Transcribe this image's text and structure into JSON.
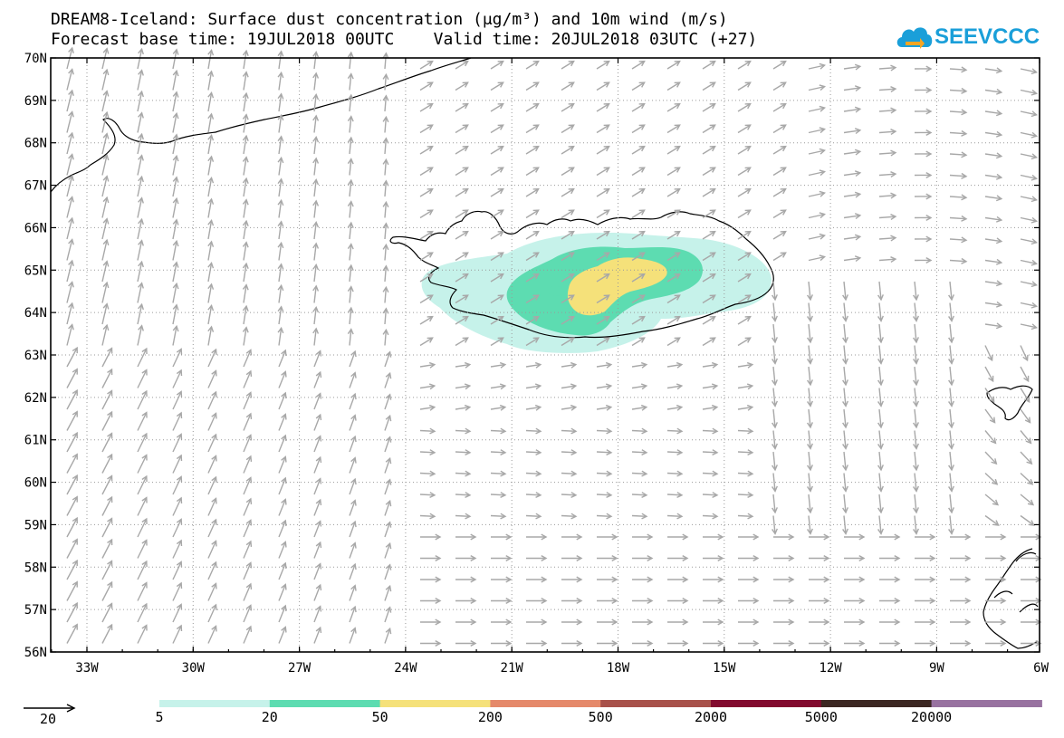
{
  "header": {
    "title_line1": "DREAM8-Iceland: Surface dust concentration (μg/m³) and 10m wind (m/s)",
    "title_line2": "Forecast base time: 19JUL2018 00UTC    Valid time: 20JUL2018 03UTC (+27)"
  },
  "logo": {
    "text": "SEEVCCC",
    "color": "#1a9fd9",
    "icon": "cloud-logo-icon"
  },
  "map": {
    "lat_labels": [
      "70N",
      "69N",
      "68N",
      "67N",
      "66N",
      "65N",
      "64N",
      "63N",
      "62N",
      "61N",
      "60N",
      "59N",
      "58N",
      "57N",
      "56N"
    ],
    "lon_labels": [
      "33W",
      "30W",
      "27W",
      "24W",
      "21W",
      "18W",
      "15W",
      "12W",
      "9W",
      "6W"
    ],
    "grid": "dotted"
  },
  "legend": {
    "wind_reference": "20",
    "bins": [
      {
        "label": "5",
        "color": "#c6f2ea"
      },
      {
        "label": "20",
        "color": "#5ddcb1"
      },
      {
        "label": "50",
        "color": "#f5e17a"
      },
      {
        "label": "200",
        "color": "#e5896a"
      },
      {
        "label": "500",
        "color": "#a8514a"
      },
      {
        "label": "2000",
        "color": "#820a2e"
      },
      {
        "label": "5000",
        "color": "#3c2722"
      },
      {
        "label": "20000",
        "color": "#9872a0"
      }
    ]
  }
}
